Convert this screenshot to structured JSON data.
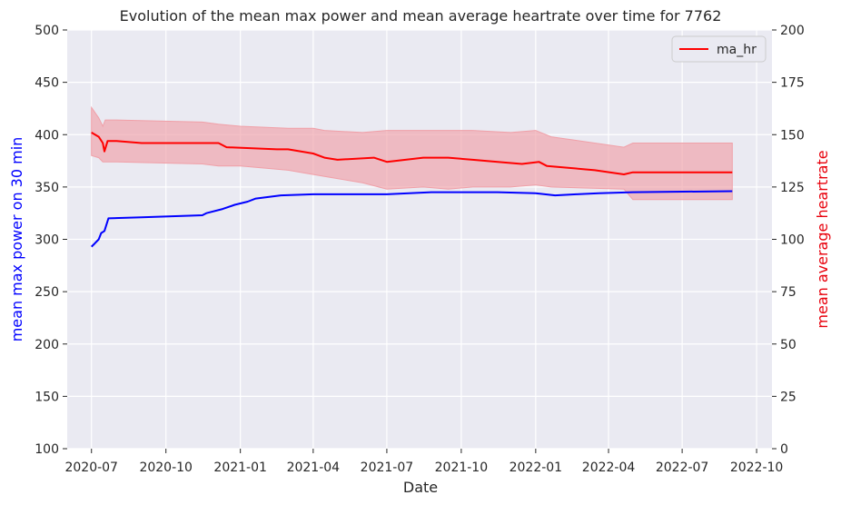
{
  "chart_data": {
    "type": "line",
    "title": "Evolution of the mean max power and mean average heartrate over time for 7762",
    "xlabel": "Date",
    "ylabel_left": "mean max power on 30 min",
    "ylabel_right": "mean average heartrate",
    "xlim": [
      "2020-06-01",
      "2022-10-20"
    ],
    "ylim_left": [
      100,
      500
    ],
    "ylim_right": [
      0,
      200
    ],
    "x_ticks": [
      "2020-07",
      "2020-10",
      "2021-01",
      "2021-04",
      "2021-07",
      "2021-10",
      "2022-01",
      "2022-04",
      "2022-07",
      "2022-10"
    ],
    "y_ticks_left": [
      100,
      150,
      200,
      250,
      300,
      350,
      400,
      450,
      500
    ],
    "y_ticks_right": [
      0,
      25,
      50,
      75,
      100,
      125,
      150,
      175,
      200
    ],
    "grid": true,
    "legend_position": "top-right",
    "legend": [
      "ma_hr"
    ],
    "colors": {
      "background": "#eaeaf2",
      "grid": "#ffffff",
      "power": "#0000ff",
      "hr": "#ff0000",
      "band": "#f0a0a8",
      "left_label": "#0000ff",
      "right_label": "#e8000b"
    },
    "series": [
      {
        "axis": "left",
        "color": "#0000ff",
        "points": [
          [
            "2020-07-01",
            293
          ],
          [
            "2020-07-05",
            296
          ],
          [
            "2020-07-10",
            300
          ],
          [
            "2020-07-13",
            306
          ],
          [
            "2020-07-17",
            308
          ],
          [
            "2020-07-22",
            320
          ],
          [
            "2020-09-01",
            321
          ],
          [
            "2020-11-15",
            323
          ],
          [
            "2020-11-20",
            325
          ],
          [
            "2020-12-10",
            329
          ],
          [
            "2020-12-25",
            333
          ],
          [
            "2021-01-10",
            336
          ],
          [
            "2021-01-20",
            339
          ],
          [
            "2021-02-20",
            342
          ],
          [
            "2021-04-01",
            343
          ],
          [
            "2021-07-01",
            343
          ],
          [
            "2021-08-25",
            345
          ],
          [
            "2021-11-15",
            345
          ],
          [
            "2022-01-01",
            344
          ],
          [
            "2022-01-25",
            342
          ],
          [
            "2022-02-20",
            343
          ],
          [
            "2022-03-20",
            344
          ],
          [
            "2022-05-01",
            345
          ],
          [
            "2022-09-01",
            346
          ]
        ]
      },
      {
        "name": "ma_hr",
        "axis": "right",
        "color": "#ff0000",
        "points": [
          [
            "2020-07-01",
            151
          ],
          [
            "2020-07-10",
            149
          ],
          [
            "2020-07-15",
            146
          ],
          [
            "2020-07-17",
            142
          ],
          [
            "2020-07-21",
            147
          ],
          [
            "2020-08-01",
            147
          ],
          [
            "2020-09-01",
            146
          ],
          [
            "2020-11-15",
            146
          ],
          [
            "2020-12-05",
            146
          ],
          [
            "2020-12-15",
            144
          ],
          [
            "2021-02-15",
            143
          ],
          [
            "2021-03-01",
            143
          ],
          [
            "2021-04-01",
            141
          ],
          [
            "2021-04-15",
            139
          ],
          [
            "2021-05-01",
            138
          ],
          [
            "2021-06-15",
            139
          ],
          [
            "2021-07-01",
            137
          ],
          [
            "2021-08-15",
            139
          ],
          [
            "2021-09-15",
            139
          ],
          [
            "2021-10-15",
            138
          ],
          [
            "2021-11-15",
            137
          ],
          [
            "2021-12-15",
            136
          ],
          [
            "2022-01-05",
            137
          ],
          [
            "2022-01-15",
            135
          ],
          [
            "2022-02-15",
            134
          ],
          [
            "2022-03-15",
            133
          ],
          [
            "2022-04-20",
            131
          ],
          [
            "2022-05-01",
            132
          ],
          [
            "2022-06-10",
            132
          ],
          [
            "2022-09-01",
            132
          ]
        ],
        "band_upper": [
          [
            "2020-07-01",
            163
          ],
          [
            "2020-07-10",
            158
          ],
          [
            "2020-07-15",
            154
          ],
          [
            "2020-07-18",
            157
          ],
          [
            "2020-08-01",
            157
          ],
          [
            "2020-11-15",
            156
          ],
          [
            "2020-12-05",
            155
          ],
          [
            "2021-01-01",
            154
          ],
          [
            "2021-03-01",
            153
          ],
          [
            "2021-04-01",
            153
          ],
          [
            "2021-04-15",
            152
          ],
          [
            "2021-06-01",
            151
          ],
          [
            "2021-07-01",
            152
          ],
          [
            "2021-09-01",
            152
          ],
          [
            "2021-10-15",
            152
          ],
          [
            "2021-12-01",
            151
          ],
          [
            "2022-01-01",
            152
          ],
          [
            "2022-01-20",
            149
          ],
          [
            "2022-04-20",
            144
          ],
          [
            "2022-05-01",
            146
          ],
          [
            "2022-09-01",
            146
          ]
        ],
        "band_lower": [
          [
            "2020-07-01",
            140
          ],
          [
            "2020-07-10",
            139
          ],
          [
            "2020-07-15",
            137
          ],
          [
            "2020-08-01",
            137
          ],
          [
            "2020-11-15",
            136
          ],
          [
            "2020-12-05",
            135
          ],
          [
            "2021-01-01",
            135
          ],
          [
            "2021-03-01",
            133
          ],
          [
            "2021-04-15",
            130
          ],
          [
            "2021-06-01",
            127
          ],
          [
            "2021-07-01",
            124
          ],
          [
            "2021-08-15",
            125
          ],
          [
            "2021-09-15",
            124
          ],
          [
            "2021-10-15",
            125
          ],
          [
            "2021-12-01",
            125
          ],
          [
            "2022-01-01",
            126
          ],
          [
            "2022-01-20",
            125
          ],
          [
            "2022-04-20",
            124
          ],
          [
            "2022-05-01",
            119
          ],
          [
            "2022-09-01",
            119
          ]
        ]
      }
    ]
  }
}
